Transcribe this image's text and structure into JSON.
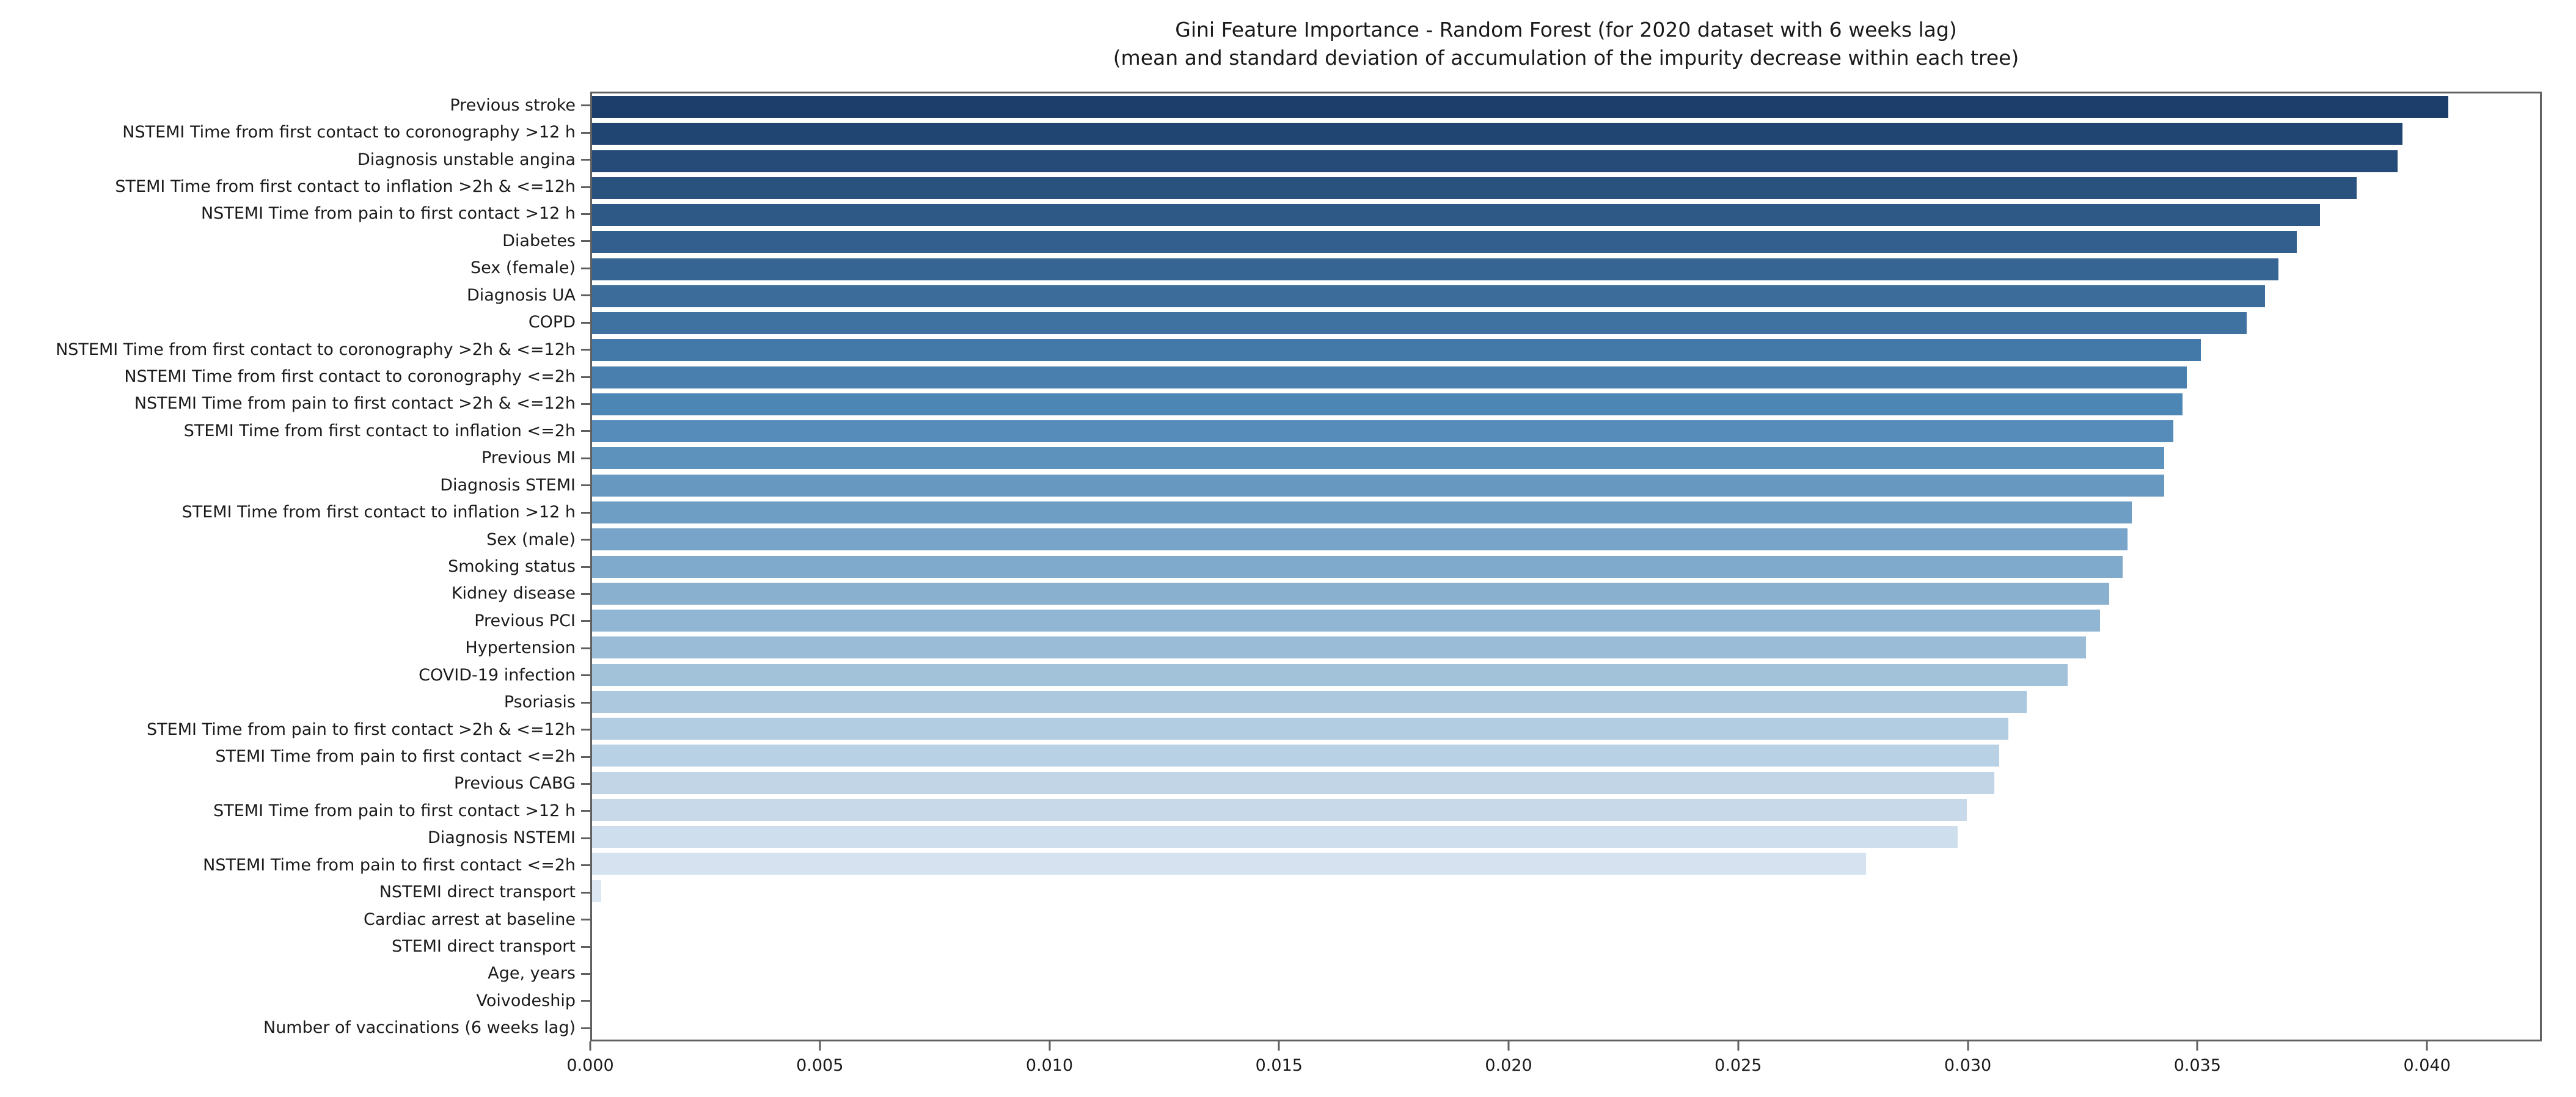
{
  "chart_data": {
    "type": "bar",
    "orientation": "horizontal",
    "title": "Gini Feature Importance - Random Forest (for 2020 dataset with 6 weeks lag)",
    "subtitle": "(mean and standard deviation of accumulation of the impurity decrease within each tree)",
    "xlabel": "",
    "ylabel": "",
    "grid": false,
    "legend": null,
    "xlim": [
      0,
      0.0425
    ],
    "x_ticks": [
      "0.000",
      "0.005",
      "0.010",
      "0.015",
      "0.020",
      "0.025",
      "0.030",
      "0.035",
      "0.040"
    ],
    "x_tick_values": [
      0,
      0.005,
      0.01,
      0.015,
      0.02,
      0.025,
      0.03,
      0.035,
      0.04
    ],
    "categories": [
      "Previous stroke",
      "NSTEMI Time from first contact to coronography >12 h",
      "Diagnosis unstable angina",
      "STEMI Time from first contact to inflation >2h & <=12h",
      "NSTEMI Time from pain to first contact >12 h",
      "Diabetes",
      "Sex (female)",
      "Diagnosis UA",
      "COPD",
      "NSTEMI Time from first contact to coronography >2h & <=12h",
      "NSTEMI Time from first contact to coronography <=2h",
      "NSTEMI Time from pain to first contact >2h & <=12h",
      "STEMI Time from first contact to inflation <=2h",
      "Previous MI",
      "Diagnosis STEMI",
      "STEMI Time from first contact to inflation >12 h",
      "Sex (male)",
      "Smoking status",
      "Kidney disease",
      "Previous PCI",
      "Hypertension",
      "COVID-19 infection",
      "Psoriasis",
      "STEMI Time from pain to first contact >2h & <=12h",
      "STEMI Time from pain to first contact <=2h",
      "Previous CABG",
      "STEMI Time from pain to first contact >12 h",
      "Diagnosis NSTEMI",
      "NSTEMI Time from pain to first contact <=2h",
      "NSTEMI direct transport",
      "Cardiac arrest at baseline",
      "STEMI direct transport",
      "Age, years",
      "Voivodeship",
      "Number of vaccinations (6 weeks lag)"
    ],
    "values": [
      0.0405,
      0.0395,
      0.0394,
      0.0385,
      0.0377,
      0.0372,
      0.0368,
      0.0365,
      0.0361,
      0.0351,
      0.0348,
      0.0347,
      0.0345,
      0.0343,
      0.0343,
      0.0336,
      0.0335,
      0.0334,
      0.0331,
      0.0329,
      0.0326,
      0.0322,
      0.0313,
      0.0309,
      0.0307,
      0.0306,
      0.03,
      0.0298,
      0.0278,
      0.0002,
      0,
      0,
      0,
      0,
      0
    ],
    "bar_colors": [
      "#1d3e6b",
      "#214572",
      "#264b78",
      "#2a527f",
      "#2e5886",
      "#325f8d",
      "#376593",
      "#3b6c9a",
      "#3f72a1",
      "#4379a8",
      "#487fae",
      "#4c86b5",
      "#558cb9",
      "#5d92bc",
      "#6698c0",
      "#6f9ec4",
      "#77a4c8",
      "#80aacb",
      "#89b0cf",
      "#91b6d3",
      "#9abcd7",
      "#a2c2da",
      "#abc8de",
      "#b2cce1",
      "#b9d1e4",
      "#c1d5e7",
      "#c8d9ea",
      "#cfdeed",
      "#d6e2f0",
      "#dde6f3",
      "#e2eaf5",
      "#e7edf7",
      "#ecf1f9",
      "#f1f4fb",
      "#f6f8fd"
    ],
    "axis_color": "#606060",
    "text_color": "#1a1a1a",
    "background_color": "#ffffff"
  }
}
